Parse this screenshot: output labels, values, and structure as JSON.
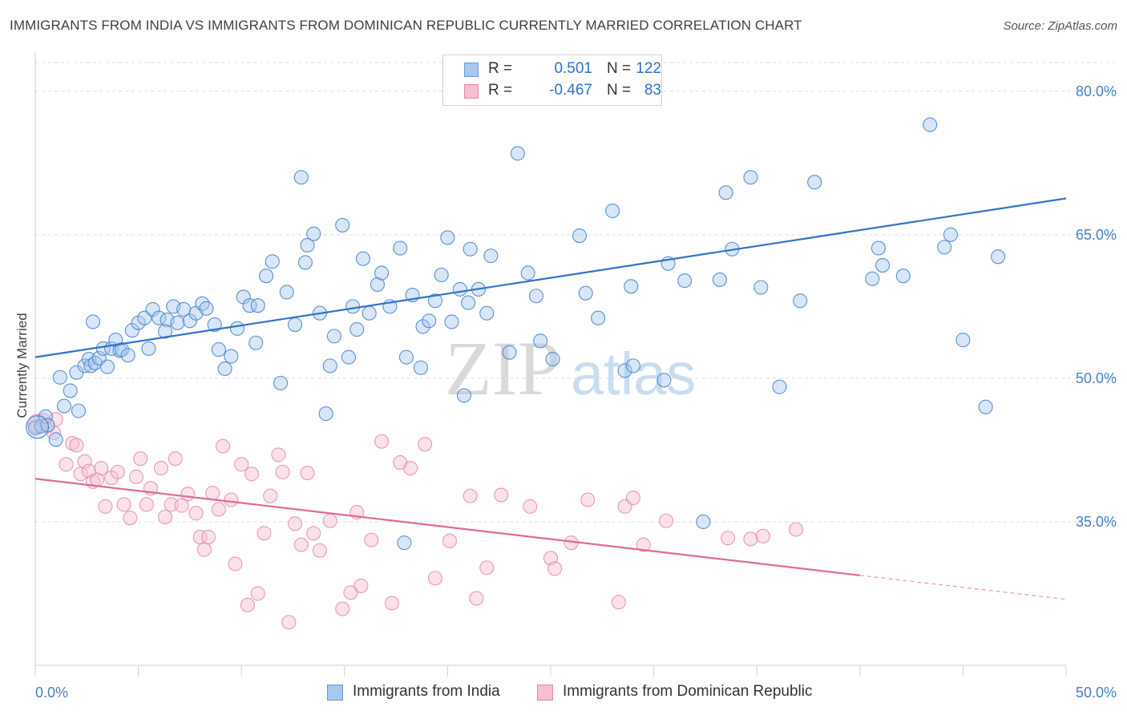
{
  "title": "IMMIGRANTS FROM INDIA VS IMMIGRANTS FROM DOMINICAN REPUBLIC CURRENTLY MARRIED CORRELATION CHART",
  "source": "Source: ZipAtlas.com",
  "watermark": {
    "zip": "ZIP",
    "atlas": "atlas"
  },
  "colors": {
    "india_fill": "#a9c8ee",
    "india_stroke": "#4a86cf",
    "india_line": "#2f74c9",
    "dr_fill": "#f6bfd0",
    "dr_stroke": "#e58aa6",
    "dr_line": "#e0699a",
    "tick_text": "#4a7fc4",
    "grid": "#dcdcdc"
  },
  "legend": {
    "rows": [
      {
        "r_label": "R =",
        "r_value": "0.501",
        "n_label": "N =",
        "n_value": "122"
      },
      {
        "r_label": "R =",
        "r_value": "-0.467",
        "n_label": "N =",
        "n_value": "83"
      }
    ]
  },
  "bottom_legend": {
    "india": "Immigrants from India",
    "dr": "Immigrants from Dominican Republic"
  },
  "chart_data": {
    "type": "scatter",
    "title": "IMMIGRANTS FROM INDIA VS IMMIGRANTS FROM DOMINICAN REPUBLIC CURRENTLY MARRIED CORRELATION CHART",
    "ylabel": "Currently Married",
    "xlabel": "",
    "xlim": [
      0,
      50
    ],
    "ylim": [
      20,
      83
    ],
    "x_tick_labels": [
      "0.0%",
      "50.0%"
    ],
    "y_ticks": [
      {
        "value": 80,
        "label": "80.0%"
      },
      {
        "value": 65,
        "label": "65.0%"
      },
      {
        "value": 50,
        "label": "50.0%"
      },
      {
        "value": 35,
        "label": "35.0%"
      }
    ],
    "grid": true,
    "series": [
      {
        "name": "Immigrants from India",
        "trend": {
          "x0": 0,
          "y0": 52.2,
          "x1": 50,
          "y1": 68.8
        },
        "points": [
          [
            0.0,
            44.8
          ],
          [
            0.3,
            45.0
          ],
          [
            0.5,
            46.0
          ],
          [
            0.6,
            45.1
          ],
          [
            1.0,
            43.6
          ],
          [
            1.4,
            47.1
          ],
          [
            1.7,
            48.7
          ],
          [
            1.2,
            50.1
          ],
          [
            2.0,
            50.6
          ],
          [
            2.1,
            46.6
          ],
          [
            2.4,
            51.3
          ],
          [
            2.6,
            52.0
          ],
          [
            2.7,
            51.3
          ],
          [
            2.9,
            51.6
          ],
          [
            3.1,
            52.1
          ],
          [
            3.5,
            51.2
          ],
          [
            3.3,
            53.1
          ],
          [
            3.7,
            53.1
          ],
          [
            3.9,
            54.0
          ],
          [
            4.1,
            52.9
          ],
          [
            4.2,
            53.0
          ],
          [
            4.5,
            52.4
          ],
          [
            4.7,
            55.0
          ],
          [
            5.0,
            55.8
          ],
          [
            5.3,
            56.3
          ],
          [
            5.5,
            53.1
          ],
          [
            5.7,
            57.2
          ],
          [
            6.0,
            56.3
          ],
          [
            6.4,
            56.1
          ],
          [
            6.7,
            57.5
          ],
          [
            6.9,
            55.8
          ],
          [
            7.2,
            57.2
          ],
          [
            7.5,
            56.0
          ],
          [
            7.8,
            56.8
          ],
          [
            8.1,
            57.8
          ],
          [
            8.3,
            57.3
          ],
          [
            8.7,
            55.6
          ],
          [
            8.9,
            53.0
          ],
          [
            9.2,
            51.0
          ],
          [
            9.5,
            52.3
          ],
          [
            9.8,
            55.2
          ],
          [
            10.1,
            58.5
          ],
          [
            10.4,
            57.6
          ],
          [
            10.8,
            57.6
          ],
          [
            11.2,
            60.7
          ],
          [
            11.5,
            62.2
          ],
          [
            11.9,
            49.5
          ],
          [
            12.2,
            59.0
          ],
          [
            12.6,
            55.6
          ],
          [
            12.9,
            71.0
          ],
          [
            13.2,
            63.9
          ],
          [
            13.5,
            65.1
          ],
          [
            13.8,
            56.8
          ],
          [
            14.1,
            46.3
          ],
          [
            14.5,
            54.4
          ],
          [
            14.9,
            66.0
          ],
          [
            15.2,
            52.2
          ],
          [
            15.4,
            57.5
          ],
          [
            15.6,
            55.1
          ],
          [
            15.9,
            62.5
          ],
          [
            16.2,
            56.8
          ],
          [
            16.6,
            59.8
          ],
          [
            16.8,
            61.0
          ],
          [
            17.2,
            57.5
          ],
          [
            17.7,
            63.6
          ],
          [
            18.0,
            52.2
          ],
          [
            18.3,
            58.7
          ],
          [
            18.8,
            55.4
          ],
          [
            19.1,
            56.0
          ],
          [
            19.4,
            58.1
          ],
          [
            19.7,
            60.8
          ],
          [
            20.0,
            64.7
          ],
          [
            20.2,
            55.9
          ],
          [
            20.6,
            59.3
          ],
          [
            21.1,
            63.5
          ],
          [
            21.5,
            59.3
          ],
          [
            21.9,
            56.8
          ],
          [
            22.1,
            62.8
          ],
          [
            23.0,
            52.7
          ],
          [
            23.4,
            73.5
          ],
          [
            23.9,
            61.0
          ],
          [
            24.5,
            53.9
          ],
          [
            25.1,
            52.0
          ],
          [
            26.4,
            64.9
          ],
          [
            28.0,
            67.5
          ],
          [
            28.6,
            50.8
          ],
          [
            29.0,
            51.3
          ],
          [
            28.9,
            59.6
          ],
          [
            30.5,
            49.8
          ],
          [
            31.5,
            60.2
          ],
          [
            33.2,
            60.3
          ],
          [
            33.5,
            69.4
          ],
          [
            33.8,
            63.5
          ],
          [
            34.7,
            71.0
          ],
          [
            35.2,
            59.5
          ],
          [
            37.1,
            58.1
          ],
          [
            37.8,
            70.5
          ],
          [
            40.6,
            60.4
          ],
          [
            40.9,
            63.6
          ],
          [
            41.1,
            61.8
          ],
          [
            42.1,
            60.7
          ],
          [
            44.1,
            63.7
          ],
          [
            44.4,
            65.0
          ],
          [
            45.0,
            54.0
          ],
          [
            46.1,
            47.0
          ],
          [
            26.7,
            58.9
          ],
          [
            13.1,
            62.1
          ],
          [
            21.0,
            57.9
          ],
          [
            36.1,
            49.1
          ],
          [
            17.9,
            32.8
          ],
          [
            20.8,
            48.2
          ],
          [
            32.4,
            35.0
          ],
          [
            2.8,
            55.9
          ],
          [
            6.3,
            54.9
          ],
          [
            10.7,
            53.7
          ],
          [
            14.3,
            51.3
          ],
          [
            18.7,
            51.1
          ],
          [
            24.3,
            58.6
          ],
          [
            27.3,
            56.3
          ],
          [
            30.7,
            62.0
          ],
          [
            43.4,
            76.5
          ],
          [
            46.7,
            62.7
          ]
        ]
      },
      {
        "name": "Immigrants from Dominican Republic",
        "trend": {
          "x0": 0,
          "y0": 39.5,
          "x1": 40,
          "y1": 29.4
        },
        "trend_extension": {
          "x0": 40,
          "y0": 29.4,
          "x1": 50,
          "y1": 26.9
        },
        "points": [
          [
            0.0,
            45.0
          ],
          [
            0.4,
            45.6
          ],
          [
            0.6,
            45.0
          ],
          [
            0.9,
            44.3
          ],
          [
            1.0,
            45.7
          ],
          [
            1.5,
            41.0
          ],
          [
            1.8,
            43.2
          ],
          [
            2.0,
            43.0
          ],
          [
            2.2,
            40.0
          ],
          [
            2.4,
            41.3
          ],
          [
            2.6,
            40.3
          ],
          [
            2.8,
            39.2
          ],
          [
            3.0,
            39.4
          ],
          [
            3.2,
            40.6
          ],
          [
            3.4,
            36.6
          ],
          [
            3.7,
            39.6
          ],
          [
            4.0,
            40.2
          ],
          [
            4.3,
            36.8
          ],
          [
            4.6,
            35.4
          ],
          [
            4.9,
            39.7
          ],
          [
            5.1,
            41.6
          ],
          [
            5.4,
            36.8
          ],
          [
            5.6,
            38.5
          ],
          [
            6.1,
            40.6
          ],
          [
            6.3,
            35.5
          ],
          [
            6.6,
            36.8
          ],
          [
            6.8,
            41.6
          ],
          [
            7.1,
            36.7
          ],
          [
            7.4,
            37.9
          ],
          [
            7.8,
            35.9
          ],
          [
            8.0,
            33.4
          ],
          [
            8.2,
            32.1
          ],
          [
            8.4,
            33.4
          ],
          [
            8.6,
            38.0
          ],
          [
            8.9,
            36.3
          ],
          [
            9.1,
            42.9
          ],
          [
            9.5,
            37.3
          ],
          [
            9.7,
            30.6
          ],
          [
            10.0,
            41.0
          ],
          [
            10.3,
            26.3
          ],
          [
            10.5,
            40.0
          ],
          [
            10.8,
            27.5
          ],
          [
            11.1,
            33.8
          ],
          [
            11.4,
            37.7
          ],
          [
            11.8,
            42.0
          ],
          [
            12.0,
            40.2
          ],
          [
            12.3,
            24.5
          ],
          [
            12.6,
            34.8
          ],
          [
            12.9,
            32.6
          ],
          [
            13.2,
            40.1
          ],
          [
            13.5,
            33.8
          ],
          [
            13.8,
            32.0
          ],
          [
            14.3,
            35.1
          ],
          [
            14.9,
            25.9
          ],
          [
            15.3,
            27.6
          ],
          [
            15.6,
            36.0
          ],
          [
            15.8,
            28.3
          ],
          [
            16.3,
            33.1
          ],
          [
            16.8,
            43.4
          ],
          [
            17.3,
            26.5
          ],
          [
            17.7,
            41.2
          ],
          [
            18.2,
            40.6
          ],
          [
            18.9,
            43.1
          ],
          [
            19.4,
            29.1
          ],
          [
            20.1,
            33.0
          ],
          [
            21.1,
            37.7
          ],
          [
            21.4,
            27.0
          ],
          [
            21.9,
            30.2
          ],
          [
            22.6,
            37.8
          ],
          [
            24.0,
            36.6
          ],
          [
            25.0,
            31.2
          ],
          [
            25.2,
            30.1
          ],
          [
            26.0,
            32.8
          ],
          [
            26.8,
            37.3
          ],
          [
            28.3,
            26.6
          ],
          [
            28.6,
            36.6
          ],
          [
            29.0,
            37.5
          ],
          [
            29.5,
            32.6
          ],
          [
            30.6,
            35.1
          ],
          [
            33.6,
            33.3
          ],
          [
            34.7,
            33.2
          ],
          [
            35.3,
            33.5
          ],
          [
            36.9,
            34.2
          ]
        ]
      }
    ]
  }
}
